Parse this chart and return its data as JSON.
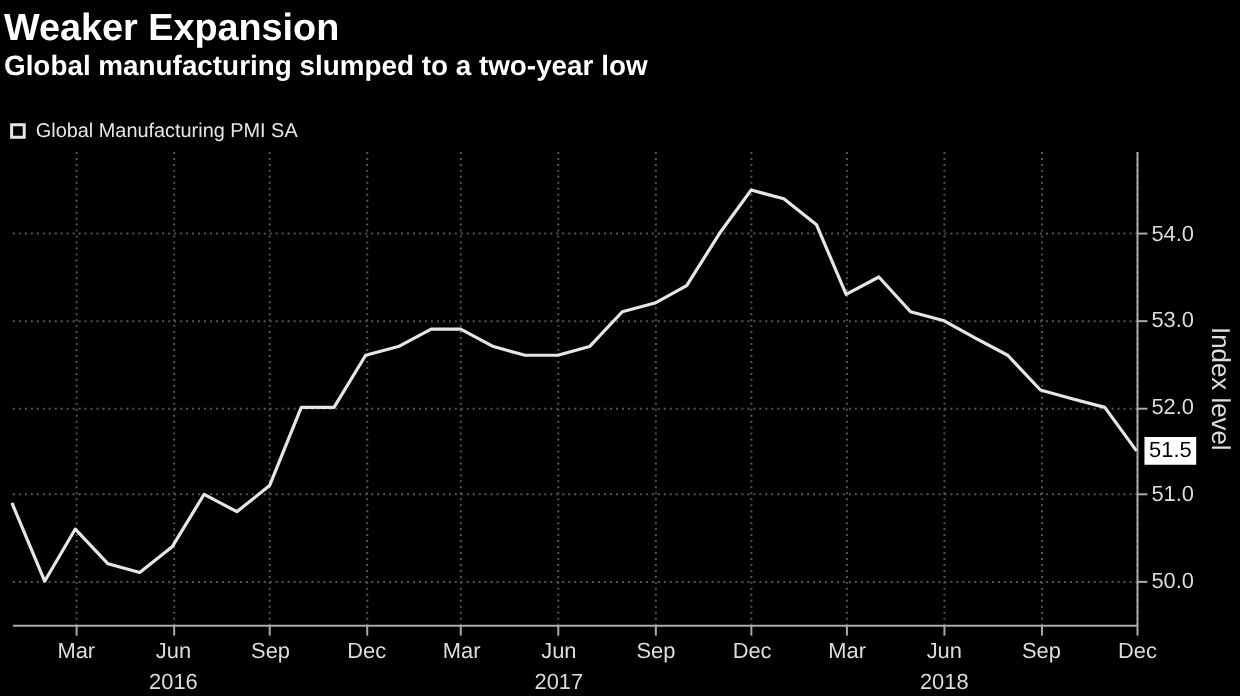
{
  "chart_data": {
    "type": "line",
    "title": "Weaker Expansion",
    "subtitle": "Global manufacturing slumped to a two-year low",
    "ylabel": "Index level",
    "x": [
      "2016-01",
      "2016-02",
      "2016-03",
      "2016-04",
      "2016-05",
      "2016-06",
      "2016-07",
      "2016-08",
      "2016-09",
      "2016-10",
      "2016-11",
      "2016-12",
      "2017-01",
      "2017-02",
      "2017-03",
      "2017-04",
      "2017-05",
      "2017-06",
      "2017-07",
      "2017-08",
      "2017-09",
      "2017-10",
      "2017-11",
      "2017-12",
      "2018-01",
      "2018-02",
      "2018-03",
      "2018-04",
      "2018-05",
      "2018-06",
      "2018-07",
      "2018-08",
      "2018-09",
      "2018-10",
      "2018-11",
      "2018-12"
    ],
    "series": [
      {
        "name": "Global Manufacturing PMI SA",
        "color": "#e6e6e6",
        "values": [
          50.9,
          50.0,
          50.6,
          50.2,
          50.1,
          50.4,
          51.0,
          50.8,
          51.1,
          52.0,
          52.0,
          52.6,
          52.7,
          52.9,
          52.9,
          52.7,
          52.6,
          52.6,
          52.7,
          53.1,
          53.2,
          53.4,
          54.0,
          54.5,
          54.4,
          54.1,
          53.3,
          53.5,
          53.1,
          53.0,
          52.8,
          52.6,
          52.2,
          52.1,
          52.0,
          51.5
        ],
        "value_labels": [
          null,
          null,
          null,
          null,
          null,
          null,
          null,
          null,
          null,
          null,
          null,
          null,
          null,
          null,
          null,
          null,
          null,
          null,
          null,
          null,
          null,
          null,
          null,
          null,
          null,
          null,
          null,
          null,
          null,
          null,
          null,
          null,
          null,
          null,
          null,
          "51.5"
        ]
      }
    ],
    "ylim": [
      49.5,
      54.95
    ],
    "yticks": [
      {
        "value": 50,
        "label": "50.0"
      },
      {
        "value": 51,
        "label": "51.0"
      },
      {
        "value": 52,
        "label": "52.0"
      },
      {
        "value": 53,
        "label": "53.0"
      },
      {
        "value": 54,
        "label": "54.0"
      }
    ],
    "xlim": [
      "2016-01",
      "2018-12"
    ],
    "xticks": [
      {
        "value": "2016-03",
        "label": "Mar"
      },
      {
        "value": "2016-06",
        "label": "Jun\n2016"
      },
      {
        "value": "2016-09",
        "label": "Sep"
      },
      {
        "value": "2016-12",
        "label": "Dec"
      },
      {
        "value": "2017-03",
        "label": "Mar"
      },
      {
        "value": "2017-06",
        "label": "Jun\n2017"
      },
      {
        "value": "2017-09",
        "label": "Sep"
      },
      {
        "value": "2017-12",
        "label": "Dec"
      },
      {
        "value": "2018-03",
        "label": "Mar"
      },
      {
        "value": "2018-06",
        "label": "Jun\n2018"
      },
      {
        "value": "2018-09",
        "label": "Sep"
      },
      {
        "value": "2018-12",
        "label": "Dec"
      }
    ],
    "grid": true,
    "legend": "top left",
    "line_style": "solid",
    "marker": "none"
  }
}
